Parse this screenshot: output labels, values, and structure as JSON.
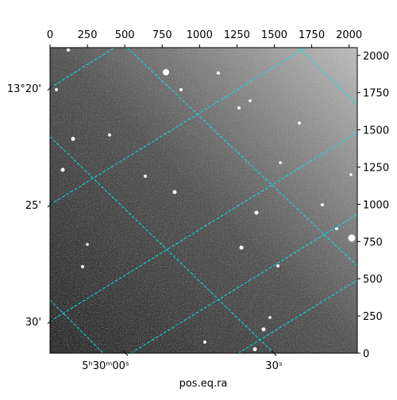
{
  "chart_data": {
    "type": "image",
    "xlabel": "pos.eq.ra",
    "xlim": [
      0,
      2055
    ],
    "xticks": [
      0,
      250,
      500,
      750,
      1000,
      1250,
      1500,
      1750,
      2000
    ],
    "ylim": [
      0,
      2052
    ],
    "yticks": [
      0,
      250,
      500,
      750,
      1000,
      1250,
      1500,
      1750,
      2000
    ],
    "dec_labels": [
      "13°20'",
      "25'",
      "30'"
    ],
    "ra_labels": [
      "5ʰ30ᵐ00ˢ",
      "30ˢ"
    ],
    "grid_color": "#00e5e5"
  }
}
